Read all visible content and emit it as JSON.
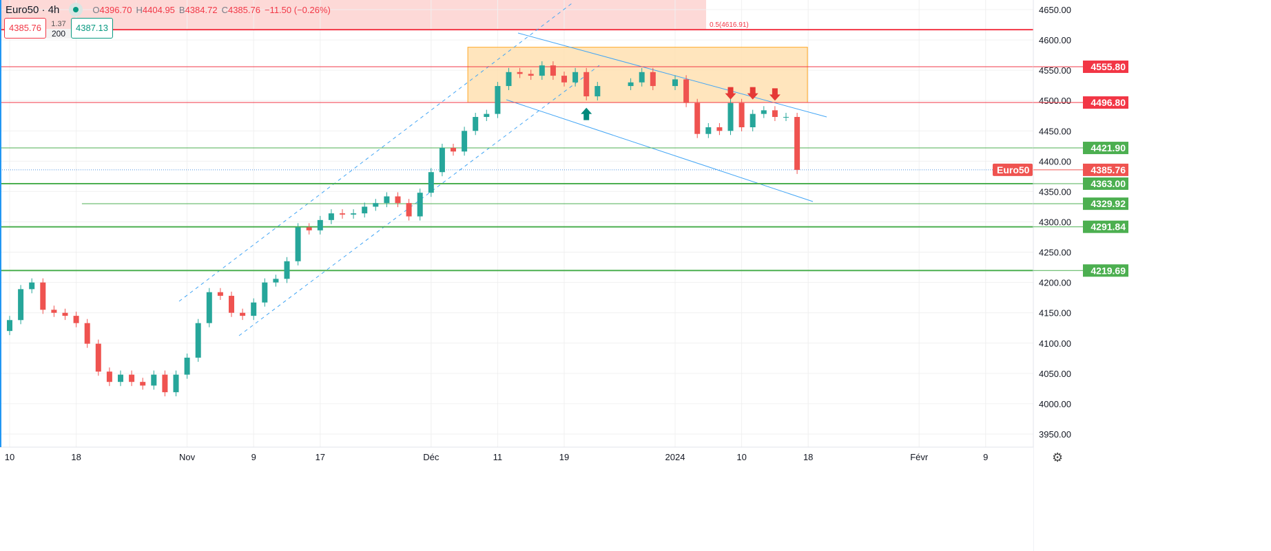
{
  "legend": {
    "symbol": "Euro50 · 4h",
    "open_label": "O",
    "open": "4396.70",
    "high_label": "H",
    "high": "4404.95",
    "low_label": "B",
    "low": "4384.72",
    "close_label": "C",
    "close": "4385.76",
    "change": "−11.50 (−0.26%)"
  },
  "trade_panel": {
    "sell": "4385.76",
    "spread": "1.37",
    "quantity": "200",
    "buy": "4387.13"
  },
  "colors": {
    "up": "#26a69a",
    "down": "#ef5350",
    "support": "#4caf50",
    "resistance": "#f23645",
    "channel": "#42a5f5",
    "zone": "#ffe0b2"
  },
  "chart_data": {
    "type": "candlestick",
    "symbol_label": "Euro50",
    "ylim": [
      3950,
      4650
    ],
    "y_ticks": [
      "4650.00",
      "4600.00",
      "4550.00",
      "4500.00",
      "4450.00",
      "4400.00",
      "4350.00",
      "4300.00",
      "4250.00",
      "4200.00",
      "4150.00",
      "4100.00",
      "4050.00",
      "4000.00",
      "3950.00"
    ],
    "x_ticks": [
      {
        "date": "2023-10-10",
        "label": "10"
      },
      {
        "date": "2023-10-18",
        "label": "18"
      },
      {
        "date": "2023-11-01",
        "label": "Nov"
      },
      {
        "date": "2023-11-09",
        "label": "9"
      },
      {
        "date": "2023-11-17",
        "label": "17"
      },
      {
        "date": "2023-12-01",
        "label": "Déc"
      },
      {
        "date": "2023-12-11",
        "label": "11"
      },
      {
        "date": "2023-12-19",
        "label": "19"
      },
      {
        "date": "2024-01-02",
        "label": "2024"
      },
      {
        "date": "2024-01-10",
        "label": "10"
      },
      {
        "date": "2024-01-18",
        "label": "18"
      },
      {
        "date": "2024-02-01",
        "label": "Févr"
      },
      {
        "date": "2024-02-09",
        "label": "9"
      }
    ],
    "first_open": 4120,
    "candles": [
      {
        "date": "2023-10-10",
        "close": 4138
      },
      {
        "date": "2023-10-11",
        "close": 4189
      },
      {
        "date": "2023-10-12",
        "close": 4200
      },
      {
        "date": "2023-10-13",
        "close": 4155
      },
      {
        "date": "2023-10-16",
        "close": 4150
      },
      {
        "date": "2023-10-17",
        "close": 4145
      },
      {
        "date": "2023-10-18",
        "close": 4133
      },
      {
        "date": "2023-10-19",
        "close": 4099
      },
      {
        "date": "2023-10-20",
        "close": 4053
      },
      {
        "date": "2023-10-23",
        "close": 4036
      },
      {
        "date": "2023-10-24",
        "close": 4048
      },
      {
        "date": "2023-10-25",
        "close": 4036
      },
      {
        "date": "2023-10-26",
        "close": 4030
      },
      {
        "date": "2023-10-27",
        "close": 4048
      },
      {
        "date": "2023-10-30",
        "close": 4019
      },
      {
        "date": "2023-10-31",
        "close": 4048
      },
      {
        "date": "2023-11-01",
        "close": 4076
      },
      {
        "date": "2023-11-02",
        "close": 4133
      },
      {
        "date": "2023-11-03",
        "close": 4184
      },
      {
        "date": "2023-11-06",
        "close": 4178
      },
      {
        "date": "2023-11-07",
        "close": 4150
      },
      {
        "date": "2023-11-08",
        "close": 4145
      },
      {
        "date": "2023-11-09",
        "close": 4167
      },
      {
        "date": "2023-11-10",
        "close": 4200
      },
      {
        "date": "2023-11-13",
        "close": 4206
      },
      {
        "date": "2023-11-14",
        "close": 4235
      },
      {
        "date": "2023-11-15",
        "close": 4291
      },
      {
        "date": "2023-11-16",
        "close": 4286
      },
      {
        "date": "2023-11-17",
        "close": 4303
      },
      {
        "date": "2023-11-20",
        "close": 4314
      },
      {
        "date": "2023-11-21",
        "close": 4312
      },
      {
        "date": "2023-11-22",
        "close": 4314
      },
      {
        "date": "2023-11-23",
        "close": 4325
      },
      {
        "date": "2023-11-24",
        "close": 4331
      },
      {
        "date": "2023-11-27",
        "close": 4342
      },
      {
        "date": "2023-11-28",
        "close": 4331
      },
      {
        "date": "2023-11-29",
        "close": 4309
      },
      {
        "date": "2023-11-30",
        "close": 4348
      },
      {
        "date": "2023-12-01",
        "close": 4382
      },
      {
        "date": "2023-12-04",
        "close": 4422
      },
      {
        "date": "2023-12-05",
        "close": 4416
      },
      {
        "date": "2023-12-06",
        "close": 4450
      },
      {
        "date": "2023-12-07",
        "close": 4473
      },
      {
        "date": "2023-12-08",
        "close": 4478
      },
      {
        "date": "2023-12-11",
        "close": 4524
      },
      {
        "date": "2023-12-12",
        "close": 4547
      },
      {
        "date": "2023-12-13",
        "close": 4544
      },
      {
        "date": "2023-12-14",
        "close": 4541
      },
      {
        "date": "2023-12-15",
        "close": 4558
      },
      {
        "date": "2023-12-18",
        "close": 4541
      },
      {
        "date": "2023-12-19",
        "close": 4530
      },
      {
        "date": "2023-12-20",
        "close": 4547
      },
      {
        "date": "2023-12-21",
        "close": 4507
      },
      {
        "date": "2023-12-22",
        "close": 4524
      },
      {
        "date": "2023-12-27",
        "close": 4530
      },
      {
        "date": "2023-12-28",
        "close": 4547
      },
      {
        "date": "2023-12-29",
        "close": 4524
      },
      {
        "date": "2024-01-02",
        "close": 4535
      },
      {
        "date": "2024-01-03",
        "close": 4496
      },
      {
        "date": "2024-01-04",
        "close": 4445
      },
      {
        "date": "2024-01-05",
        "close": 4456
      },
      {
        "date": "2024-01-08",
        "close": 4450
      },
      {
        "date": "2024-01-09",
        "close": 4496
      },
      {
        "date": "2024-01-10",
        "close": 4456
      },
      {
        "date": "2024-01-11",
        "close": 4478
      },
      {
        "date": "2024-01-12",
        "close": 4484
      },
      {
        "date": "2024-01-15",
        "close": 4473
      },
      {
        "date": "2024-01-16",
        "close": 4473
      },
      {
        "date": "2024-01-17",
        "close": 4385.76
      }
    ],
    "levels": [
      {
        "price": 4555.8,
        "label": "4555.80",
        "kind": "resistance"
      },
      {
        "price": 4496.8,
        "label": "4496.80",
        "kind": "resistance"
      },
      {
        "price": 4421.9,
        "label": "4421.90",
        "kind": "support"
      },
      {
        "price": 4363.0,
        "label": "4363.00",
        "kind": "support",
        "thick": true
      },
      {
        "price": 4329.92,
        "label": "4329.92",
        "kind": "support",
        "from": "2023-10-23"
      },
      {
        "price": 4291.84,
        "label": "4291.84",
        "kind": "support",
        "thick": true
      },
      {
        "price": 4219.69,
        "label": "4219.69",
        "kind": "support",
        "thick": true
      }
    ],
    "last_price": {
      "price": 4385.76,
      "label": "4385.76"
    },
    "fib_label": "0.5(4616.91)",
    "fib_price": 4616.91,
    "zone": {
      "from": "2023-12-06",
      "to": "2024-01-17",
      "top": 4588,
      "bottom": 4496.8
    },
    "arrows": [
      {
        "date": "2023-12-21",
        "price": 4478,
        "dir": "up"
      },
      {
        "date": "2024-01-09",
        "price": 4512,
        "dir": "down"
      },
      {
        "date": "2024-01-11",
        "price": 4512,
        "dir": "down"
      },
      {
        "date": "2024-01-15",
        "price": 4510,
        "dir": "down"
      }
    ]
  }
}
